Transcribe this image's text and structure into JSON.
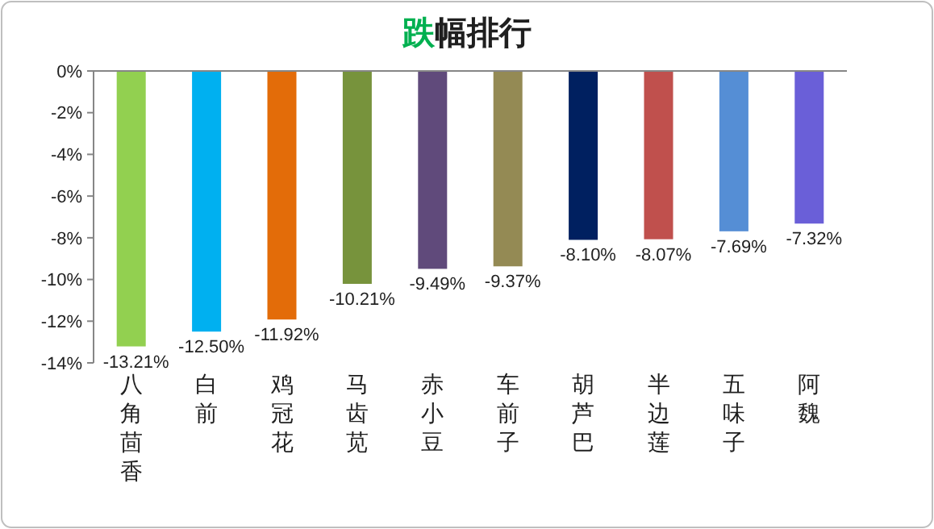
{
  "chart_data": {
    "type": "bar",
    "title": "跌幅排行",
    "categories": [
      "八角茴香",
      "白前",
      "鸡冠花",
      "马齿苋",
      "赤小豆",
      "车前子",
      "胡芦巴",
      "半边莲",
      "五味子",
      "阿魏"
    ],
    "values": [
      -13.21,
      -12.5,
      -11.92,
      -10.21,
      -9.49,
      -9.37,
      -8.1,
      -8.07,
      -7.69,
      -7.32
    ],
    "value_labels": [
      "-13.21%",
      "-12.50%",
      "-11.92%",
      "-10.21%",
      "-9.49%",
      "-9.37%",
      "-8.10%",
      "-8.07%",
      "-7.69%",
      "-7.32%"
    ],
    "colors": [
      "#92d050",
      "#00b0f0",
      "#e36c09",
      "#77933c",
      "#604a7b",
      "#948a54",
      "#002060",
      "#c0504d",
      "#558ed5",
      "#6a5fd8"
    ],
    "ylim": [
      -14,
      0
    ],
    "yticks": [
      {
        "value": 0,
        "label": "0%"
      },
      {
        "value": -2,
        "label": "-2%"
      },
      {
        "value": -4,
        "label": "-4%"
      },
      {
        "value": -6,
        "label": "-6%"
      },
      {
        "value": -8,
        "label": "-8%"
      },
      {
        "value": -10,
        "label": "-10%"
      },
      {
        "value": -12,
        "label": "-12%"
      },
      {
        "value": -14,
        "label": "-14%"
      }
    ],
    "grid": false
  }
}
